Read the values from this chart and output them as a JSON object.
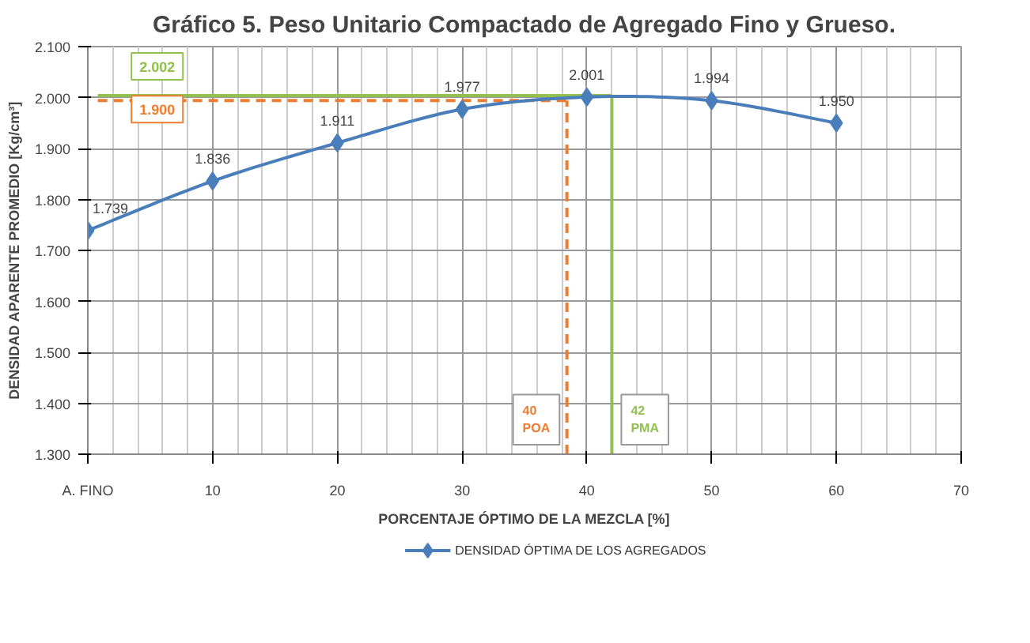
{
  "chart_data": {
    "type": "line",
    "title": "Gráfico 5. Peso Unitario Compactado de Agregado Fino y Grueso.",
    "xlabel": "PORCENTAJE ÓPTIMO DE LA MEZCLA [%]",
    "ylabel": "DENSIDAD APARENTE PROMEDIO [Kg/cm³]",
    "x": [
      0,
      10,
      20,
      30,
      40,
      50,
      60
    ],
    "series": [
      {
        "name": "DENSIDAD ÓPTIMA DE LOS AGREGADOS",
        "color": "#4a7ebb",
        "values": [
          1.739,
          1.836,
          1.911,
          1.977,
          2.001,
          1.994,
          1.95
        ],
        "value_labels": [
          "1.739",
          "1.836",
          "1.911",
          "1.977",
          "2.001",
          "1.994",
          "1.950"
        ]
      }
    ],
    "xlim": [
      0,
      70
    ],
    "xticks": [
      {
        "value": 0,
        "label": "A. FINO"
      },
      10,
      20,
      30,
      40,
      50,
      60,
      70
    ],
    "ylim": [
      1.3,
      2.1
    ],
    "yticks": [
      {
        "value": 1.3,
        "label": "1.300"
      },
      {
        "value": 1.4,
        "label": "1.400"
      },
      {
        "value": 1.5,
        "label": "1.500"
      },
      {
        "value": 1.6,
        "label": "1.600"
      },
      {
        "value": 1.7,
        "label": "1.700"
      },
      {
        "value": 1.8,
        "label": "1.800"
      },
      {
        "value": 1.9,
        "label": "1.900"
      },
      {
        "value": 2.0,
        "label": "2.000"
      },
      {
        "value": 2.1,
        "label": "2.100"
      }
    ],
    "annotations": [
      "2.002",
      "1.900"
    ],
    "ref_lines": [
      {
        "axis": "y",
        "value": 2.004,
        "color": "#92c050",
        "line_style": "solid"
      },
      {
        "axis": "y",
        "value": 1.994,
        "color": "#ed7d31",
        "line_style": "dashed"
      },
      {
        "axis": "x",
        "value": 38.4,
        "label": "40 POA",
        "color": "#ed7d31",
        "line_style": "dashed"
      },
      {
        "axis": "x",
        "value": 42,
        "label": "42 PMA",
        "color": "#92c050",
        "line_style": "solid"
      }
    ],
    "marker": "diamond",
    "line_style": "solid",
    "grid": true,
    "legend": "bottom"
  }
}
